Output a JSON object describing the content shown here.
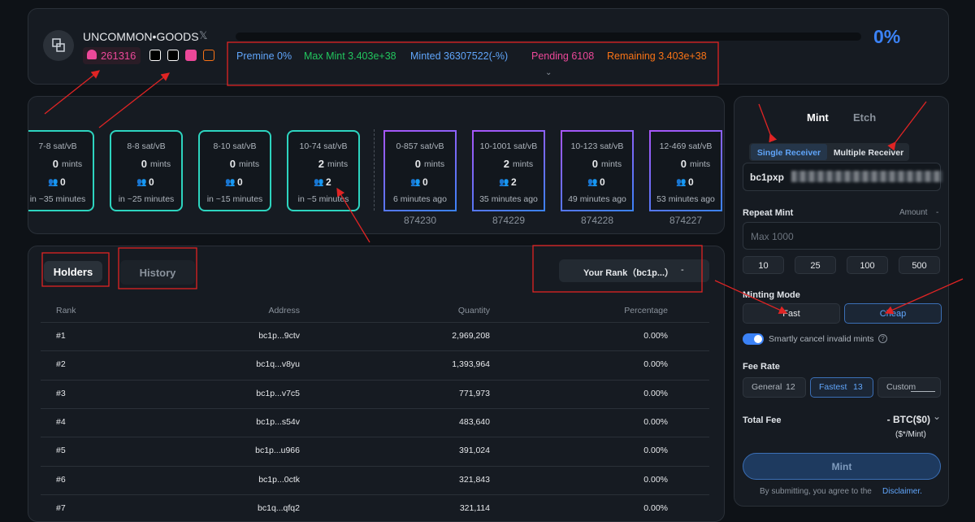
{
  "header": {
    "title": "UNCOMMON•GOODS",
    "holders": "261316",
    "progress": "0%",
    "stats": [
      "Premine 0%",
      "Max Mint 3.403e+38",
      "Minted 36307522(-%)",
      "Pending 6108",
      "Remaining 3.403e+38"
    ]
  },
  "blocks": {
    "mints_label": "mints",
    "cards": [
      {
        "fee": "7-8 sat/vB",
        "mints": "0",
        "count": "0",
        "time": "in ~35 minutes"
      },
      {
        "fee": "8-8 sat/vB",
        "mints": "0",
        "count": "0",
        "time": "in ~25 minutes"
      },
      {
        "fee": "8-10 sat/vB",
        "mints": "0",
        "count": "0",
        "time": "in ~15 minutes"
      },
      {
        "fee": "10-74 sat/vB",
        "mints": "2",
        "count": "2",
        "time": "in ~5 minutes"
      },
      {
        "fee": "0-857 sat/vB",
        "mints": "0",
        "count": "0",
        "time": "6 minutes ago",
        "block": "874230"
      },
      {
        "fee": "10-1001 sat/vB",
        "mints": "2",
        "count": "2",
        "time": "35 minutes ago",
        "block": "874229"
      },
      {
        "fee": "10-123 sat/vB",
        "mints": "0",
        "count": "0",
        "time": "49 minutes ago",
        "block": "874228"
      },
      {
        "fee": "12-469 sat/vB",
        "mints": "0",
        "count": "0",
        "time": "53 minutes ago",
        "block": "874227"
      }
    ]
  },
  "holders": {
    "tabs": [
      "Holders",
      "History"
    ],
    "your_rank": "Your Rank（bc1p...）",
    "your_rank_value": "-",
    "table": {
      "columns": [
        "Rank",
        "Address",
        "Quantity",
        "Percentage"
      ],
      "rows": [
        [
          "#1",
          "bc1p...9ctv",
          "2,969,208",
          "0.00%"
        ],
        [
          "#2",
          "bc1q...v8yu",
          "1,393,964",
          "0.00%"
        ],
        [
          "#3",
          "bc1p...v7c5",
          "771,973",
          "0.00%"
        ],
        [
          "#4",
          "bc1p...s54v",
          "483,640",
          "0.00%"
        ],
        [
          "#5",
          "bc1p...u966",
          "391,024",
          "0.00%"
        ],
        [
          "#6",
          "bc1p...0ctk",
          "321,843",
          "0.00%"
        ],
        [
          "#7",
          "bc1q...qfq2",
          "321,114",
          "0.00%"
        ]
      ]
    }
  },
  "mint_panel": {
    "tabs": [
      "Mint",
      "Etch"
    ],
    "receiver_tabs": [
      "Single Receiver",
      "Multiple Receiver"
    ],
    "address": "bc1pxp",
    "repeat_label": "Repeat Mint",
    "amount_label": "Amount",
    "amount_value": "-",
    "repeat_placeholder": "Max 1000",
    "quick_amounts": [
      "10",
      "25",
      "100",
      "500"
    ],
    "mode_label": "Minting Mode",
    "modes": [
      "Fast",
      "Cheap"
    ],
    "smart_cancel": "Smartly cancel invalid mints",
    "fee_label": "Fee Rate",
    "fees": [
      {
        "name": "General",
        "rate": "12"
      },
      {
        "name": "Fastest",
        "rate": "13"
      },
      {
        "name": "Custom"
      }
    ],
    "total_label": "Total Fee",
    "total_value": "- BTC($0)",
    "per_mint": "($*/Mint)",
    "submit": "Mint",
    "disclaimer_text": "By submitting, you agree to the",
    "disclaimer_link": "Disclaimer."
  }
}
